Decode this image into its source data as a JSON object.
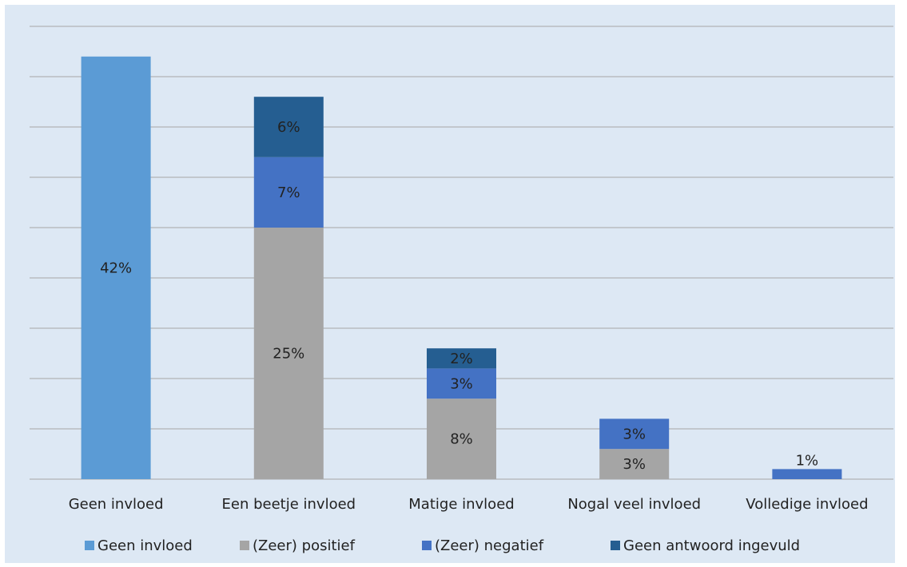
{
  "chart_data": {
    "type": "stacked_bar",
    "categories": [
      "Geen invloed",
      "Een beetje invloed",
      "Matige invloed",
      "Nogal veel invloed",
      "Volledige invloed"
    ],
    "series": [
      {
        "name": "Geen invloed",
        "color": "#5b9bd5",
        "values": [
          42,
          null,
          null,
          null,
          null
        ],
        "value_labels": [
          "42%",
          null,
          null,
          null,
          null
        ]
      },
      {
        "name": "(Zeer) positief",
        "color": "#a5a5a5",
        "values": [
          null,
          25,
          8,
          3,
          null
        ],
        "value_labels": [
          null,
          "25%",
          "8%",
          "3%",
          null
        ]
      },
      {
        "name": "(Zeer) negatief",
        "color": "#4472c4",
        "values": [
          null,
          7,
          3,
          3,
          1
        ],
        "value_labels": [
          null,
          "7%",
          "3%",
          "3%",
          "1%"
        ]
      },
      {
        "name": "Geen antwoord ingevuld",
        "color": "#255e91",
        "values": [
          null,
          6,
          2,
          null,
          null
        ],
        "value_labels": [
          null,
          "6%",
          "2%",
          null,
          null
        ]
      }
    ],
    "ylim": [
      0,
      45
    ],
    "yticks": [
      0,
      5,
      10,
      15,
      20,
      25,
      30,
      35,
      40,
      45
    ],
    "grid": true,
    "legend": "bottom"
  }
}
